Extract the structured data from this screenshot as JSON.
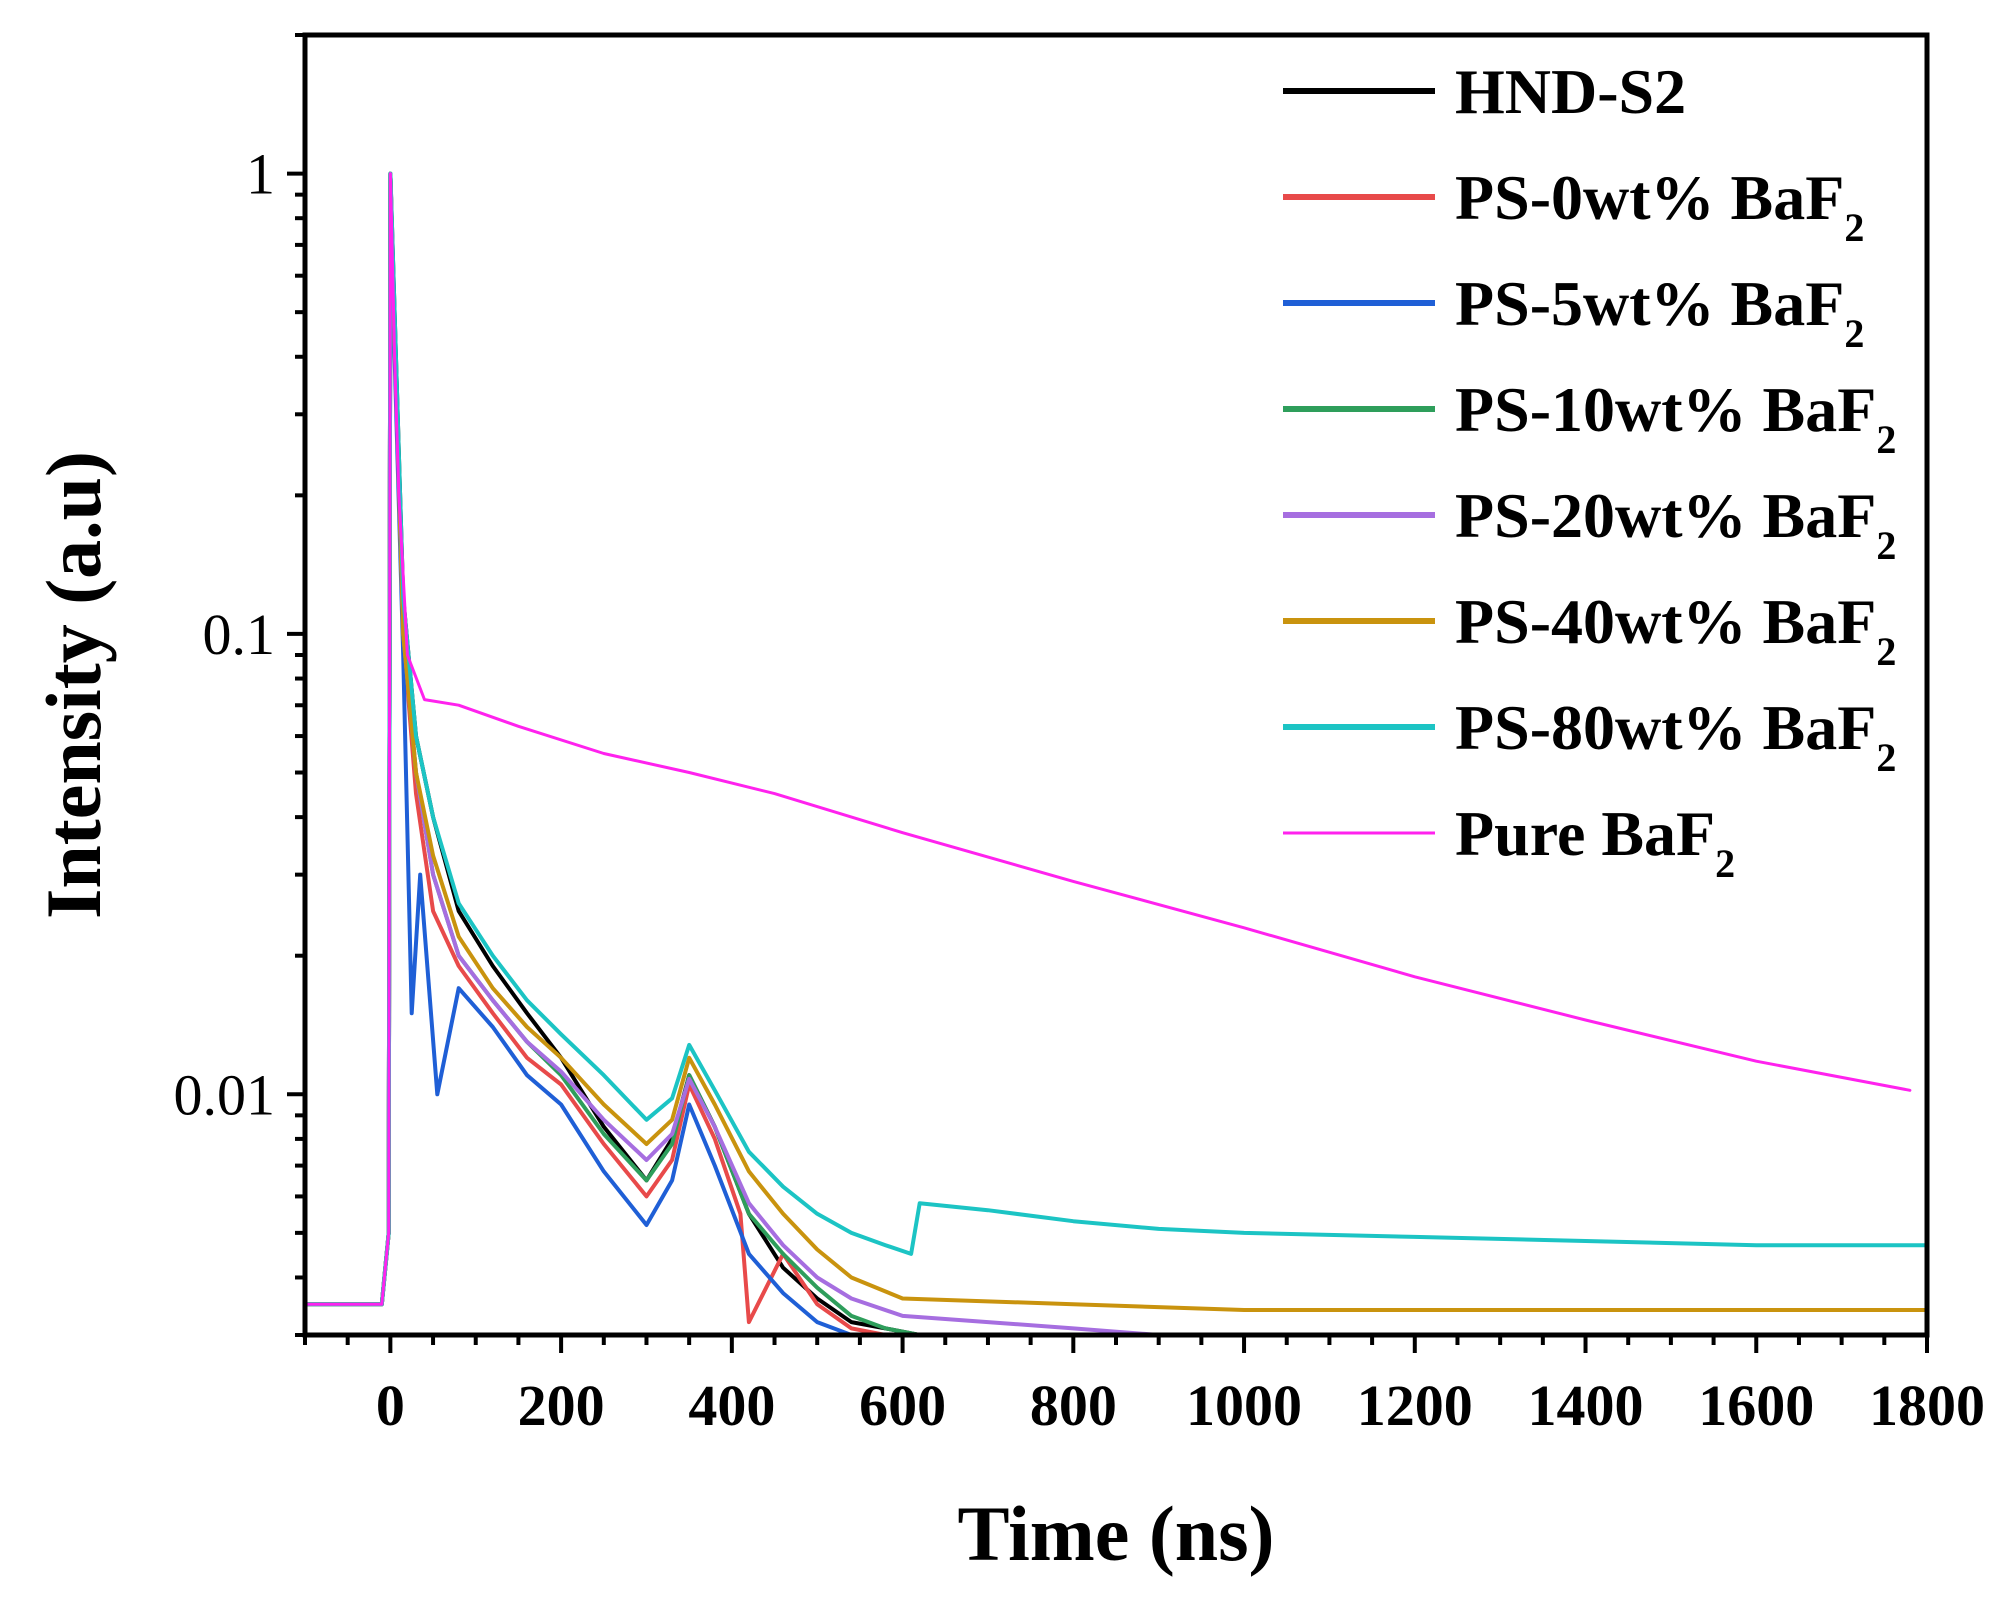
{
  "chart_data": {
    "type": "line",
    "title": "",
    "xlabel": "Time (ns)",
    "ylabel": "Intensity (a.u)",
    "xlim": [
      -100,
      1800
    ],
    "ylim": [
      0.003,
      2.0
    ],
    "yscale": "log",
    "x_ticks": [
      0,
      200,
      400,
      600,
      800,
      1000,
      1200,
      1400,
      1600,
      1800
    ],
    "x_tick_labels": [
      "0",
      "200",
      "400",
      "600",
      "800",
      "1000",
      "1200",
      "1400",
      "1600",
      "1800"
    ],
    "y_ticks": [
      0.01,
      0.1,
      1
    ],
    "y_tick_labels": [
      "0.01",
      "0.1",
      "1"
    ],
    "grid": false,
    "legend_position": "top-right",
    "series": [
      {
        "name": "HND-S2",
        "legend_main": "HND-S2",
        "legend_sub": "",
        "color": "#000000",
        "x": [
          -100,
          -10,
          -2,
          0,
          5,
          15,
          30,
          50,
          80,
          120,
          160,
          200,
          250,
          300,
          330,
          350,
          380,
          420,
          460,
          500,
          540,
          580,
          620
        ],
        "y": [
          0.0035,
          0.0035,
          0.005,
          1.0,
          0.5,
          0.12,
          0.06,
          0.04,
          0.025,
          0.019,
          0.015,
          0.012,
          0.0085,
          0.0065,
          0.008,
          0.011,
          0.0085,
          0.0055,
          0.0042,
          0.0036,
          0.0032,
          0.0031,
          0.003
        ]
      },
      {
        "name": "PS-0wt% BaF2",
        "legend_main": "PS-0wt% BaF",
        "legend_sub": "2",
        "color": "#e84a4a",
        "x": [
          -100,
          -10,
          -2,
          0,
          5,
          15,
          30,
          50,
          80,
          120,
          160,
          200,
          250,
          300,
          330,
          350,
          380,
          410,
          420,
          460,
          500,
          540,
          580
        ],
        "y": [
          0.0035,
          0.0035,
          0.005,
          1.0,
          0.45,
          0.1,
          0.045,
          0.025,
          0.019,
          0.015,
          0.012,
          0.0105,
          0.0078,
          0.006,
          0.0072,
          0.0105,
          0.008,
          0.0055,
          0.0032,
          0.0045,
          0.0035,
          0.0031,
          0.003
        ]
      },
      {
        "name": "PS-5wt% BaF2",
        "legend_main": "PS-5wt% BaF",
        "legend_sub": "2",
        "color": "#1f5fd6",
        "x": [
          -100,
          -10,
          -2,
          0,
          5,
          15,
          25,
          35,
          55,
          80,
          120,
          160,
          200,
          250,
          300,
          330,
          350,
          380,
          420,
          460,
          500,
          540,
          580
        ],
        "y": [
          0.0035,
          0.0035,
          0.005,
          1.0,
          0.4,
          0.09,
          0.015,
          0.03,
          0.01,
          0.017,
          0.014,
          0.011,
          0.0095,
          0.0068,
          0.0052,
          0.0065,
          0.0095,
          0.007,
          0.0045,
          0.0037,
          0.0032,
          0.003,
          0.003
        ]
      },
      {
        "name": "PS-10wt% BaF2",
        "legend_main": "PS-10wt% BaF",
        "legend_sub": "2",
        "color": "#2e9e5b",
        "x": [
          -100,
          -10,
          -2,
          0,
          5,
          15,
          30,
          50,
          80,
          120,
          160,
          200,
          250,
          300,
          330,
          350,
          380,
          420,
          460,
          500,
          540,
          580,
          620
        ],
        "y": [
          0.0035,
          0.0035,
          0.005,
          1.0,
          0.45,
          0.1,
          0.05,
          0.03,
          0.02,
          0.016,
          0.013,
          0.011,
          0.0082,
          0.0065,
          0.0078,
          0.011,
          0.0085,
          0.0055,
          0.0045,
          0.0038,
          0.0033,
          0.0031,
          0.003
        ]
      },
      {
        "name": "PS-20wt% BaF2",
        "legend_main": "PS-20wt% BaF",
        "legend_sub": "2",
        "color": "#a66ee0",
        "x": [
          -100,
          -10,
          -2,
          0,
          5,
          15,
          30,
          50,
          80,
          120,
          160,
          200,
          250,
          300,
          330,
          350,
          380,
          420,
          460,
          500,
          540,
          600,
          700,
          800,
          900
        ],
        "y": [
          0.0035,
          0.0035,
          0.005,
          1.0,
          0.45,
          0.1,
          0.05,
          0.03,
          0.02,
          0.016,
          0.013,
          0.0112,
          0.0088,
          0.0072,
          0.0082,
          0.0108,
          0.0085,
          0.0058,
          0.0047,
          0.004,
          0.0036,
          0.0033,
          0.0032,
          0.0031,
          0.003
        ]
      },
      {
        "name": "PS-40wt% BaF2",
        "legend_main": "PS-40wt% BaF",
        "legend_sub": "2",
        "color": "#c9930e",
        "x": [
          -100,
          -10,
          -2,
          0,
          5,
          15,
          30,
          50,
          80,
          120,
          160,
          200,
          250,
          300,
          330,
          350,
          380,
          420,
          460,
          500,
          540,
          600,
          800,
          1000,
          1200,
          1400,
          1600,
          1800
        ],
        "y": [
          0.0035,
          0.0035,
          0.005,
          1.0,
          0.45,
          0.1,
          0.05,
          0.033,
          0.022,
          0.017,
          0.014,
          0.012,
          0.0095,
          0.0078,
          0.0088,
          0.012,
          0.0095,
          0.0068,
          0.0055,
          0.0046,
          0.004,
          0.0036,
          0.0035,
          0.0034,
          0.0034,
          0.0034,
          0.0034,
          0.0034
        ]
      },
      {
        "name": "PS-80wt% BaF2",
        "legend_main": "PS-80wt% BaF",
        "legend_sub": "2",
        "color": "#1cc4c4",
        "x": [
          -100,
          -10,
          -2,
          0,
          5,
          15,
          30,
          50,
          80,
          120,
          160,
          200,
          250,
          300,
          330,
          350,
          380,
          420,
          460,
          500,
          540,
          580,
          610,
          620,
          700,
          800,
          900,
          1000,
          1200,
          1400,
          1600,
          1800
        ],
        "y": [
          0.0035,
          0.0035,
          0.005,
          1.0,
          0.5,
          0.12,
          0.06,
          0.04,
          0.026,
          0.02,
          0.016,
          0.0135,
          0.011,
          0.0088,
          0.0098,
          0.0128,
          0.0102,
          0.0075,
          0.0063,
          0.0055,
          0.005,
          0.0047,
          0.0045,
          0.0058,
          0.0056,
          0.0053,
          0.0051,
          0.005,
          0.0049,
          0.0048,
          0.0047,
          0.0047
        ]
      },
      {
        "name": "Pure BaF2",
        "legend_main": "Pure BaF",
        "legend_sub": "2",
        "color": "#ff22ee",
        "x": [
          -100,
          -10,
          -2,
          0,
          5,
          10,
          20,
          40,
          80,
          150,
          250,
          350,
          450,
          600,
          800,
          1000,
          1200,
          1400,
          1600,
          1780
        ],
        "y": [
          0.0035,
          0.0035,
          0.005,
          1.0,
          0.4,
          0.2,
          0.09,
          0.072,
          0.07,
          0.063,
          0.055,
          0.05,
          0.045,
          0.037,
          0.029,
          0.023,
          0.018,
          0.0145,
          0.0118,
          0.0102
        ]
      }
    ]
  }
}
